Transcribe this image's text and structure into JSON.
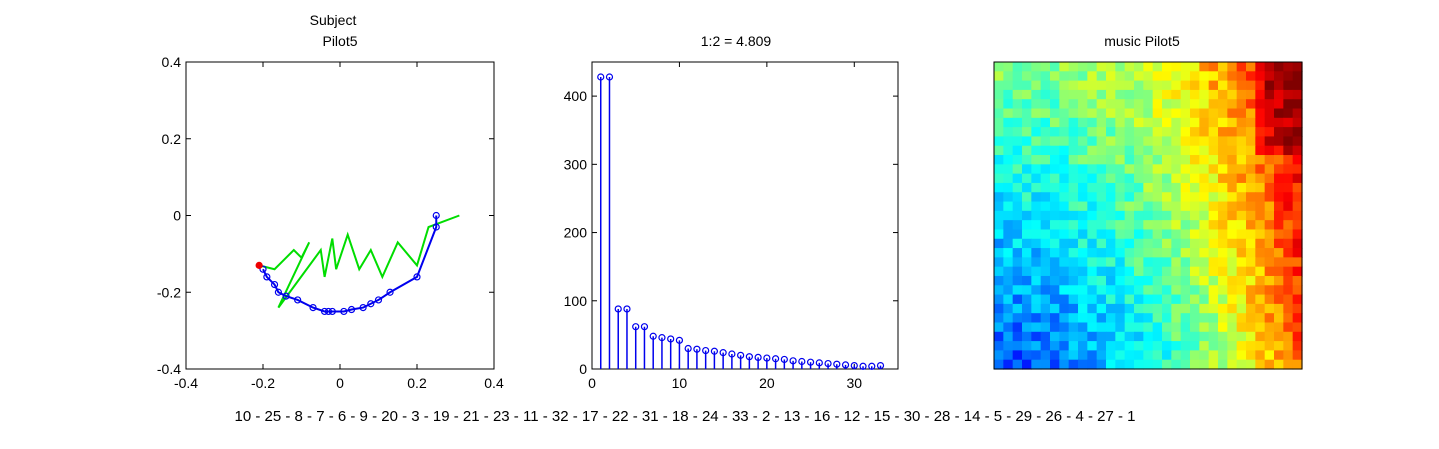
{
  "sequence_label": "10 - 25 - 8 - 7 - 6 - 9 - 20 - 3 - 19 - 21 - 23 - 11 - 32 - 17 - 22 - 31 - 18 - 24 - 33 - 2 - 13 - 16 - 12 - 15 - 30 - 28 - 14 - 5 - 29 - 26 - 4 - 27 - 1",
  "chart_data": [
    {
      "type": "line",
      "title": [
        "Subject",
        "Pilot5"
      ],
      "xlim": [
        -0.4,
        0.4
      ],
      "ylim": [
        -0.4,
        0.4
      ],
      "xticks": [
        "-0.4",
        "-0.2",
        "0",
        "0.2",
        "0.4"
      ],
      "yticks": [
        "-0.4",
        "-0.2",
        "0",
        "0.2",
        "0.4"
      ],
      "series": [
        {
          "color": "#00dd00",
          "x": [
            -0.21,
            -0.17,
            -0.15,
            -0.12,
            -0.1,
            -0.08,
            -0.16,
            -0.05,
            -0.04,
            -0.02,
            -0.01,
            0.02,
            0.05,
            0.08,
            0.11,
            0.15,
            0.2,
            0.23,
            0.31
          ],
          "y": [
            -0.13,
            -0.14,
            -0.12,
            -0.09,
            -0.11,
            -0.07,
            -0.24,
            -0.09,
            -0.16,
            -0.06,
            -0.14,
            -0.05,
            -0.14,
            -0.09,
            -0.16,
            -0.07,
            -0.13,
            -0.03,
            0.0
          ]
        },
        {
          "color": "#0000ee",
          "markers": "circle",
          "x": [
            0.25,
            0.25,
            0.2,
            0.13,
            0.1,
            0.08,
            0.06,
            0.03,
            0.01,
            -0.02,
            -0.03,
            -0.04,
            -0.07,
            -0.11,
            -0.14,
            -0.16,
            -0.17,
            -0.19,
            -0.2
          ],
          "y": [
            0.0,
            -0.03,
            -0.16,
            -0.2,
            -0.22,
            -0.23,
            -0.24,
            -0.245,
            -0.25,
            -0.25,
            -0.25,
            -0.25,
            -0.24,
            -0.22,
            -0.21,
            -0.2,
            -0.18,
            -0.16,
            -0.14
          ]
        },
        {
          "color": "#ee0000",
          "markers": "circle",
          "x": [
            -0.21
          ],
          "y": [
            -0.13
          ]
        }
      ]
    },
    {
      "type": "stem",
      "title": "1:2 = 4.809",
      "xlim": [
        0,
        35
      ],
      "ylim": [
        0,
        450
      ],
      "xticks": [
        "0",
        "10",
        "20",
        "30"
      ],
      "yticks": [
        "0",
        "100",
        "200",
        "300",
        "400"
      ],
      "color": "#0000ee",
      "x": [
        1,
        2,
        3,
        4,
        5,
        6,
        7,
        8,
        9,
        10,
        11,
        12,
        13,
        14,
        15,
        16,
        17,
        18,
        19,
        20,
        21,
        22,
        23,
        24,
        25,
        26,
        27,
        28,
        29,
        30,
        31,
        32,
        33
      ],
      "values": [
        428,
        428,
        88,
        88,
        62,
        62,
        48,
        46,
        44,
        42,
        30,
        29,
        27,
        26,
        24,
        22,
        20,
        18,
        17,
        16,
        15,
        14,
        12,
        11,
        10,
        9,
        8,
        7,
        6,
        5,
        4,
        4,
        5
      ]
    },
    {
      "type": "heatmap",
      "title": "music Pilot5",
      "rows": 33,
      "cols": 33,
      "colormap": "jet",
      "axes": "off"
    }
  ]
}
